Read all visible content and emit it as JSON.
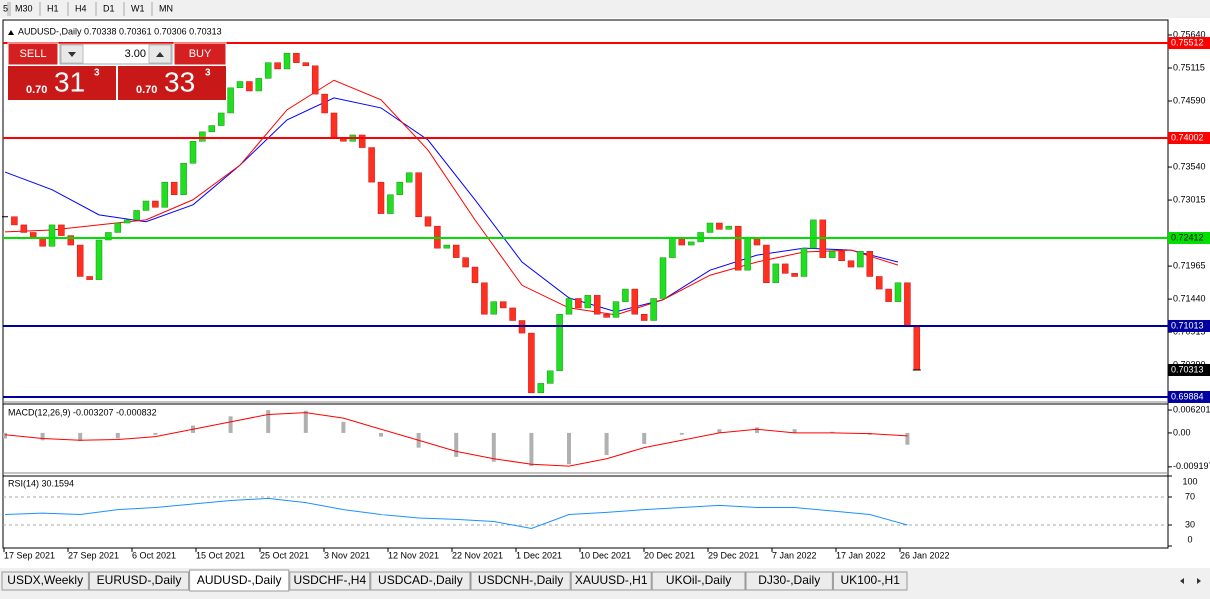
{
  "toolbar": {
    "timeframes": [
      "5",
      "M30",
      "H1",
      "H4",
      "D1",
      "W1",
      "MN"
    ]
  },
  "trade_panel": {
    "sell_label": "SELL",
    "lot": "3.00",
    "buy_label": "BUY",
    "bid": {
      "prefix": "0.70",
      "big": "31",
      "pip": "3"
    },
    "ask": {
      "prefix": "0.70",
      "big": "33",
      "pip": "3"
    }
  },
  "chart": {
    "title": "AUDUSD-,Daily 0.70338 0.70361 0.70306 0.70313",
    "ylim": [
      0.69836,
      0.75751
    ],
    "yticks": [
      {
        "value": 0.7564,
        "label": "0.75640"
      },
      0.75115,
      {
        "value": 0.7459,
        "label": "0.74590"
      },
      {
        "value": 0.7354,
        "label": "0.73540"
      },
      0.73015,
      0.71965,
      {
        "value": 0.7144,
        "label": "0.71440"
      },
      0.70915,
      {
        "value": 0.7039,
        "label": "0.70390"
      }
    ],
    "levels": [
      {
        "value": 0.75512,
        "color": "#ff0000"
      },
      {
        "value": 0.74002,
        "color": "#ff0000"
      },
      {
        "value": 0.72412,
        "color": "#00e000"
      },
      {
        "value": 0.71013,
        "color": "#0000a0"
      },
      {
        "value": 0.69884,
        "color": "#0000a0"
      }
    ],
    "current_price": 0.70313,
    "closes": [
      0.7275,
      0.7262,
      0.725,
      0.724,
      0.7228,
      0.7262,
      0.7245,
      0.723,
      0.718,
      0.7175,
      0.7238,
      0.725,
      0.7265,
      0.727,
      0.7285,
      0.73,
      0.729,
      0.733,
      0.731,
      0.736,
      0.7395,
      0.741,
      0.742,
      0.744,
      0.748,
      0.749,
      0.7475,
      0.7495,
      0.752,
      0.751,
      0.7535,
      0.752,
      0.7515,
      0.747,
      0.744,
      0.74,
      0.7395,
      0.7405,
      0.7385,
      0.733,
      0.728,
      0.731,
      0.733,
      0.7345,
      0.7275,
      0.726,
      0.7225,
      0.723,
      0.721,
      0.7195,
      0.717,
      0.712,
      0.714,
      0.713,
      0.711,
      0.709,
      0.6995,
      0.701,
      0.703,
      0.712,
      0.7145,
      0.713,
      0.715,
      0.712,
      0.7115,
      0.714,
      0.716,
      0.712,
      0.711,
      0.7145,
      0.721,
      0.724,
      0.723,
      0.7235,
      0.725,
      0.7265,
      0.7255,
      0.726,
      0.719,
      0.724,
      0.723,
      0.717,
      0.72,
      0.7185,
      0.718,
      0.7225,
      0.727,
      0.721,
      0.722,
      0.7205,
      0.7195,
      0.722,
      0.718,
      0.716,
      0.714,
      0.717,
      0.71,
      0.7031
    ],
    "ma_red": [
      0.7251,
      0.7254,
      0.7262,
      0.727,
      0.7302,
      0.7357,
      0.7445,
      0.7492,
      0.7461,
      0.7381,
      0.727,
      0.7166,
      0.713,
      0.7119,
      0.7143,
      0.7182,
      0.7203,
      0.7219,
      0.7222,
      0.7198
    ],
    "ma_blue": [
      0.7346,
      0.7318,
      0.7278,
      0.7267,
      0.7294,
      0.7357,
      0.7429,
      0.7464,
      0.7448,
      0.7397,
      0.7302,
      0.7203,
      0.7146,
      0.7124,
      0.7143,
      0.719,
      0.7214,
      0.7225,
      0.7222,
      0.7203
    ],
    "dates": [
      "17 Sep 2021",
      "27 Sep 2021",
      "6 Oct 2021",
      "15 Oct 2021",
      "25 Oct 2021",
      "3 Nov 2021",
      "12 Nov 2021",
      "22 Nov 2021",
      "1 Dec 2021",
      "10 Dec 2021",
      "20 Dec 2021",
      "29 Dec 2021",
      "7 Jan 2022",
      "17 Jan 2022",
      "26 Jan 2022"
    ]
  },
  "macd": {
    "title": "MACD(12,26,9) -0.003207 -0.000832",
    "ylim": [
      -0.0106,
      0.0073
    ],
    "yticks": [
      0.006201,
      {
        "value": 0,
        "label": "0.00"
      },
      -0.009197
    ],
    "histogram": [
      -0.0015,
      -0.002,
      -0.0022,
      -0.0015,
      -0.0005,
      0.002,
      0.0045,
      0.0062,
      0.006,
      0.003,
      -0.001,
      -0.004,
      -0.0065,
      -0.0078,
      -0.009,
      -0.0085,
      -0.006,
      -0.003,
      -0.0005,
      0.001,
      0.0015,
      0.001,
      0.0003,
      -0.0005,
      -0.0032
    ],
    "signal": [
      -0.0005,
      -0.0015,
      -0.002,
      -0.0018,
      -0.001,
      0.001,
      0.003,
      0.005,
      0.0055,
      0.004,
      0.001,
      -0.002,
      -0.005,
      -0.007,
      -0.0085,
      -0.009,
      -0.007,
      -0.004,
      -0.002,
      0,
      0.001,
      0,
      0,
      -0.0002,
      -0.0008
    ]
  },
  "rsi": {
    "title": "RSI(14) 30.1594",
    "ylim": [
      0,
      100
    ],
    "yticks": [
      100,
      70,
      30,
      0
    ],
    "levels": [
      70,
      30
    ],
    "values": [
      45,
      47,
      45,
      52,
      55,
      60,
      65,
      68,
      62,
      52,
      45,
      40,
      38,
      35,
      25,
      45,
      48,
      52,
      55,
      58,
      55,
      55,
      50,
      45,
      30
    ]
  },
  "tabs": {
    "items": [
      "USDX,Weekly",
      "EURUSD-,Daily",
      "AUDUSD-,Daily",
      "USDCHF-,H4",
      "USDCAD-,Daily",
      "USDCNH-,Daily",
      "XAUUSD-,H1",
      "UKOil-,Daily",
      "DJ30-,Daily",
      "UK100-,H1"
    ],
    "active": "AUDUSD-,Daily"
  }
}
